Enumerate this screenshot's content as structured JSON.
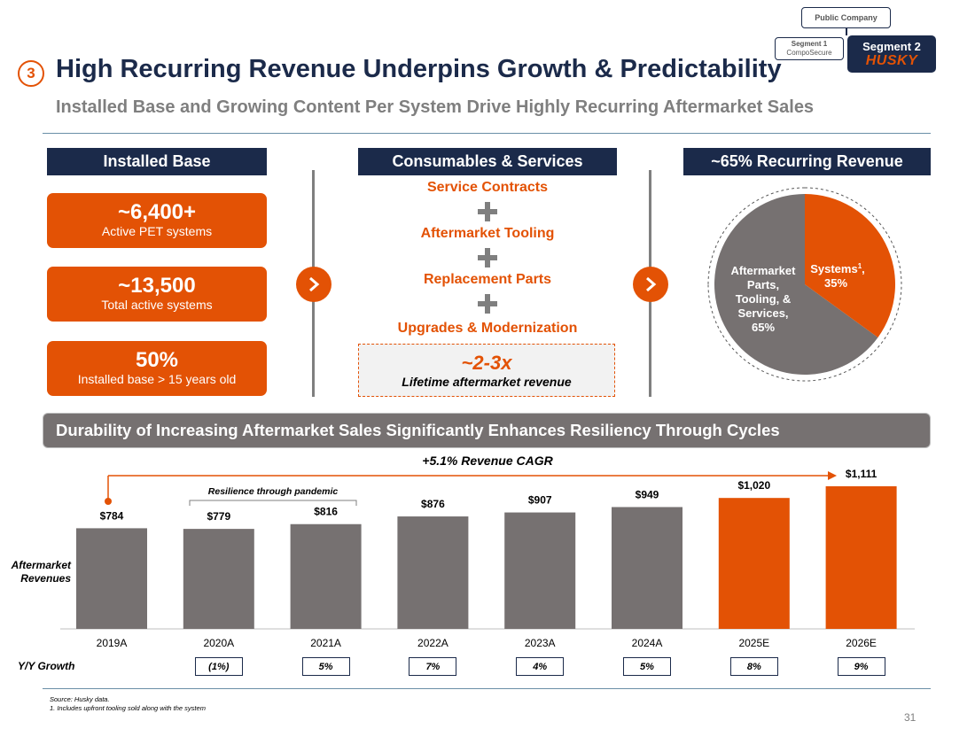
{
  "header": {
    "section_number": "3",
    "title": "High Recurring Revenue Underpins Growth & Predictability",
    "subtitle": "Installed Base and Growing Content Per System Drive Highly Recurring Aftermarket Sales"
  },
  "org": {
    "public_company": "Public Company",
    "segment1_label": "Segment 1",
    "segment1_brand": "CompoSecure",
    "segment2_label": "Segment 2",
    "segment2_brand": "HUSKY"
  },
  "installed_base": {
    "header": "Installed Base",
    "cards": [
      {
        "value": "~6,400+",
        "label": "Active PET systems"
      },
      {
        "value": "~13,500",
        "label": "Total active systems"
      },
      {
        "value": "50%",
        "label": "Installed base > 15 years old"
      }
    ]
  },
  "consumables": {
    "header": "Consumables & Services",
    "items": [
      "Service Contracts",
      "Aftermarket Tooling",
      "Replacement Parts",
      "Upgrades & Modernization"
    ],
    "lifetime_value": "~2-3x",
    "lifetime_label": "Lifetime aftermarket revenue"
  },
  "recurring": {
    "header": "~65% Recurring Revenue",
    "pie": {
      "type": "pie",
      "slices": [
        {
          "label": "Systems",
          "superscript": "1",
          "suffix": ",",
          "percent_label": "35%",
          "value": 35,
          "color": "#e35205"
        },
        {
          "label_lines": [
            "Aftermarket",
            "Parts,",
            "Tooling, &",
            "Services,"
          ],
          "percent_label": "65%",
          "value": 65,
          "color": "#767171"
        }
      ]
    }
  },
  "durability": {
    "banner": "Durability of Increasing Aftermarket Sales Significantly Enhances Resiliency Through Cycles",
    "cagr_label": "+5.1% Revenue CAGR",
    "resilience_label": "Resilience through pandemic",
    "y_axis_label_line1": "Aftermarket",
    "y_axis_label_line2": "Revenues",
    "yy_label": "Y/Y Growth"
  },
  "chart_data": {
    "type": "bar",
    "title": "Aftermarket Revenues",
    "categories": [
      "2019A",
      "2020A",
      "2021A",
      "2022A",
      "2023A",
      "2024A",
      "2025E",
      "2026E"
    ],
    "values": [
      784,
      779,
      816,
      876,
      907,
      949,
      1020,
      1111
    ],
    "value_labels": [
      "$784",
      "$779",
      "$816",
      "$876",
      "$907",
      "$949",
      "$1,020",
      "$1,111"
    ],
    "growth": [
      "",
      "(1%)",
      "5%",
      "7%",
      "4%",
      "5%",
      "8%",
      "9%"
    ],
    "colors": {
      "actual": "#767171",
      "estimate": "#e35205"
    },
    "estimate_from_index": 6,
    "ylim": [
      0,
      1111
    ]
  },
  "footer": {
    "source": "Source: Husky data.",
    "note": "1. Includes upfront tooling sold along with the system",
    "page_number": "31"
  },
  "colors": {
    "orange": "#e35205",
    "navy": "#1b2a4a",
    "gray": "#767171"
  }
}
